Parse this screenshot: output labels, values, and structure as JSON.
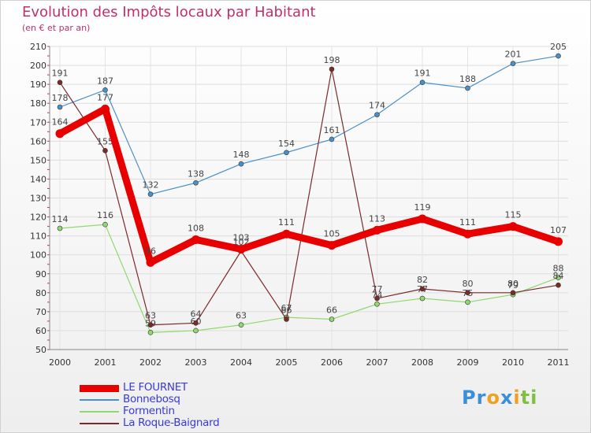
{
  "title": "Evolution des Impôts locaux par Habitant",
  "subtitle": "(en € et par an)",
  "logo": {
    "parts": [
      "Pr",
      "o",
      "x",
      "i",
      "ti"
    ],
    "colors": [
      "#3a8fd8",
      "#f0a020",
      "#3a8fd8",
      "#f0a020",
      "#80c040"
    ]
  },
  "chart_data": {
    "type": "line",
    "title": "Evolution des Impôts locaux par Habitant",
    "subtitle": "(en € et par an)",
    "xlabel": "",
    "ylabel": "",
    "ylim": [
      50,
      210
    ],
    "yticks": [
      50,
      60,
      70,
      80,
      90,
      100,
      110,
      120,
      130,
      140,
      150,
      160,
      170,
      180,
      190,
      200,
      210
    ],
    "x": [
      "2000",
      "2001",
      "2002",
      "2003",
      "2004",
      "2005",
      "2006",
      "2007",
      "2008",
      "2009",
      "2010",
      "2011"
    ],
    "grid": true,
    "legend_position": "bottom-left",
    "series": [
      {
        "name": "LE FOURNET",
        "color": "#e80000",
        "values": [
          164,
          177,
          96,
          108,
          103,
          111,
          105,
          113,
          119,
          111,
          115,
          107
        ]
      },
      {
        "name": "Bonnebosq",
        "color": "#4a90c8",
        "values": [
          178,
          187,
          132,
          138,
          148,
          154,
          161,
          174,
          191,
          188,
          201,
          205
        ]
      },
      {
        "name": "Formentin",
        "color": "#90d870",
        "values": [
          114,
          116,
          59,
          60,
          63,
          67,
          66,
          74,
          77,
          75,
          79,
          88
        ]
      },
      {
        "name": "La Roque-Baignard",
        "color": "#7a2a2a",
        "values": [
          191,
          155,
          63,
          64,
          102,
          66,
          198,
          77,
          82,
          80,
          80,
          84
        ]
      }
    ]
  }
}
